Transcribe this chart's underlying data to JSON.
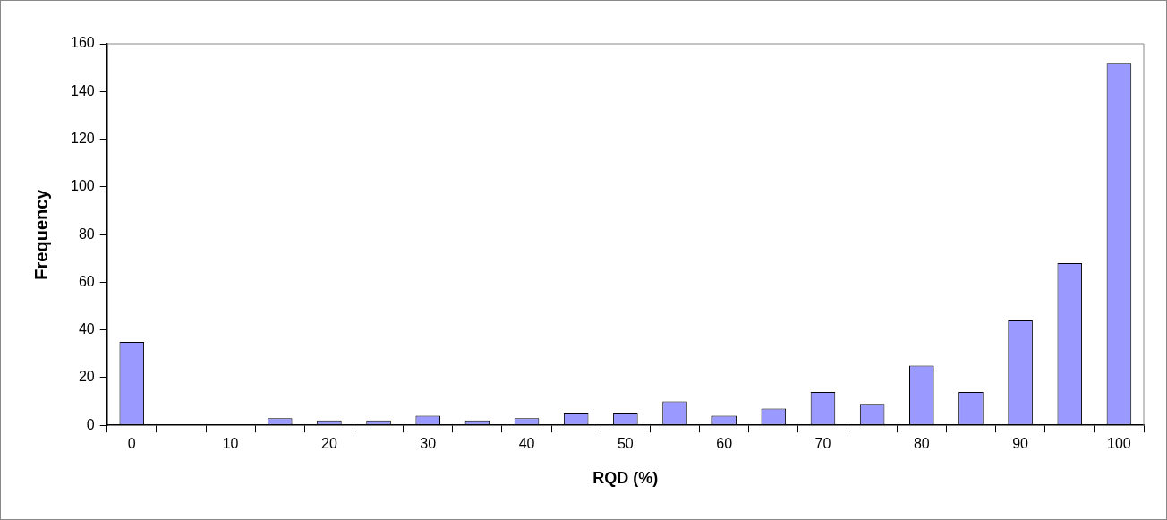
{
  "chart_data": {
    "type": "bar",
    "xlabel": "RQD (%)",
    "ylabel": "Frequency",
    "categories": [
      "0",
      null,
      "10",
      null,
      "20",
      null,
      "30",
      null,
      "40",
      null,
      "50",
      null,
      "60",
      null,
      "70",
      null,
      "80",
      null,
      "90",
      null,
      "100"
    ],
    "values": [
      35,
      0,
      0,
      3,
      2,
      2,
      4,
      2,
      3,
      5,
      5,
      10,
      4,
      7,
      14,
      9,
      25,
      14,
      44,
      68,
      152
    ],
    "color": "#9999ff",
    "ylim": [
      0,
      160
    ],
    "yticks": [
      0,
      20,
      40,
      60,
      80,
      100,
      120,
      140,
      160
    ],
    "grid": false,
    "legend": false
  }
}
